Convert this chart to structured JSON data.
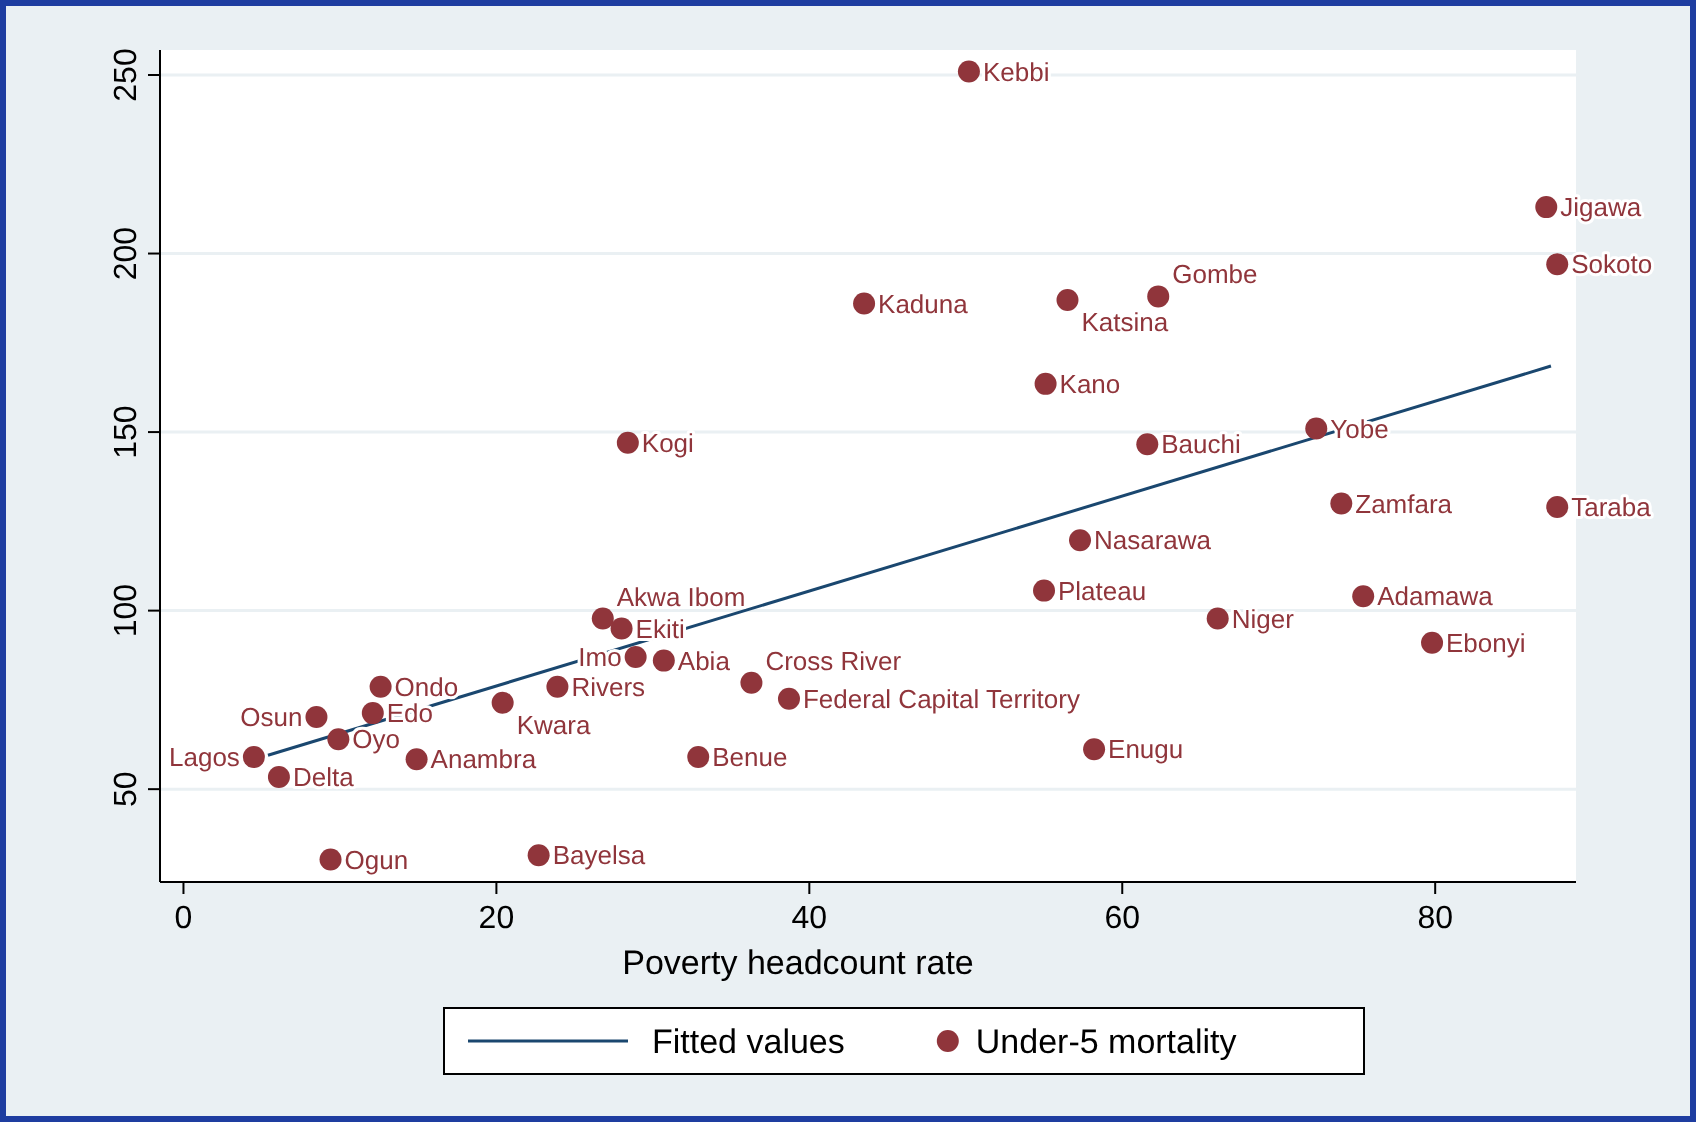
{
  "chart_data": {
    "type": "scatter",
    "xlabel": "Poverty headcount rate",
    "xlim": [
      -1.5,
      89
    ],
    "ylim": [
      24,
      257
    ],
    "xticks": [
      0,
      20,
      40,
      60,
      80
    ],
    "yticks": [
      50,
      100,
      150,
      200,
      250
    ],
    "grid": "y",
    "legend": "bottom",
    "series": [
      {
        "name": "Fitted values",
        "type": "line",
        "color": "#1a476f",
        "line_style": "solid",
        "x": [
          5.4,
          87.4
        ],
        "values": [
          59.5,
          168.5
        ]
      },
      {
        "name": "Under-5 mortality",
        "marker": "circle",
        "color": "#90353b",
        "x": [
          50.2,
          87.1,
          87.8,
          43.5,
          56.5,
          62.3,
          55.1,
          28.4,
          61.6,
          72.4,
          74.0,
          87.8,
          57.3,
          55.0,
          66.1,
          75.4,
          79.8,
          58.2,
          38.7,
          36.3,
          32.9,
          22.7,
          9.4,
          14.9,
          4.5,
          6.1,
          9.9,
          8.5,
          12.1,
          12.6,
          20.4,
          23.9,
          26.8,
          28.0,
          28.9,
          30.7
        ],
        "values": [
          251,
          213,
          197,
          186,
          187,
          188,
          163.5,
          147,
          146.6,
          151,
          130,
          129,
          119.7,
          105.6,
          97.8,
          104,
          91,
          61.2,
          75.3,
          79.8,
          59,
          31.5,
          30.3,
          58.4,
          59,
          53.4,
          64,
          70.2,
          71.3,
          78.7,
          74.2,
          78.7,
          97.8,
          95,
          87,
          86
        ],
        "value_labels": [
          "Kebbi",
          "Jigawa",
          "Sokoto",
          "Kaduna",
          "Katsina",
          "Gombe",
          "Kano",
          "Kogi",
          "Bauchi",
          "Yobe",
          "Zamfara",
          "Taraba",
          "Nasarawa",
          "Plateau",
          "Niger",
          "Adamawa",
          "Ebonyi",
          "Enugu",
          "Federal Capital Territory",
          "Cross River",
          "Benue",
          "Bayelsa",
          "Ogun",
          "Anambra",
          "Lagos",
          "Delta",
          "Oyo",
          "Osun",
          "Edo",
          "Ondo",
          "Kwara",
          "Rivers",
          "Akwa Ibom",
          "Ekiti",
          "Imo",
          "Abia"
        ]
      }
    ]
  }
}
